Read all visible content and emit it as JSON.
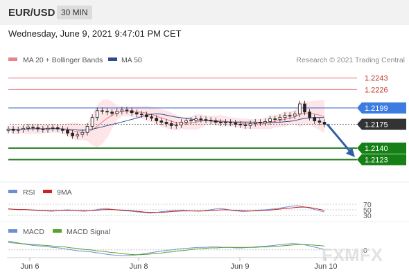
{
  "header": {
    "pair": "EUR/USD",
    "timeframe": "30 MIN"
  },
  "timestamp": "Wednesday, June 9, 2021 9:47:01 PM CET",
  "legend": {
    "ma20": "MA 20 + Bollinger Bands",
    "ma50": "MA 50",
    "copyright": "Research © 2021 Trading Central",
    "rsi": "RSI",
    "rsi_ma": "9MA",
    "macd": "MACD",
    "macd_signal": "MACD Signal"
  },
  "watermark": "FXMFX",
  "colors": {
    "resistance": "#e9838b",
    "pivot": "#5b7fd1",
    "support": "#1e7a1e",
    "current": "#333333",
    "ma20": "#f08080",
    "ma50": "#2e4e8a",
    "band_fill": "#fde0e4",
    "candle": "#222222",
    "arrow": "#2e5ea8",
    "rsi": "#6b8fd4",
    "rsi_ma": "#cc2222",
    "macd": "#6b8fd4",
    "macd_signal": "#5aa02c"
  },
  "chart_data": [
    {
      "type": "candlestick",
      "y_range": [
        1.2095,
        1.226
      ],
      "x_labels": [
        "Jun 6",
        "Jun 8",
        "Jun 9",
        "Jun 10"
      ],
      "levels": [
        {
          "label": "1.2243",
          "value": 1.2243,
          "kind": "resistance"
        },
        {
          "label": "1.2226",
          "value": 1.2226,
          "kind": "resistance"
        },
        {
          "label": "1.2199",
          "value": 1.2199,
          "kind": "pivot"
        },
        {
          "label": "1.2175",
          "value": 1.2175,
          "kind": "current"
        },
        {
          "label": "1.2140",
          "value": 1.214,
          "kind": "support"
        },
        {
          "label": "1.2123",
          "value": 1.2123,
          "kind": "support"
        }
      ],
      "close_series": [
        1.2168,
        1.2166,
        1.2167,
        1.2169,
        1.2171,
        1.217,
        1.2168,
        1.2167,
        1.2169,
        1.217,
        1.2168,
        1.2166,
        1.2162,
        1.2158,
        1.216,
        1.2163,
        1.2172,
        1.2185,
        1.2195,
        1.2194,
        1.2193,
        1.2191,
        1.2194,
        1.2196,
        1.2195,
        1.2192,
        1.219,
        1.2189,
        1.2186,
        1.2184,
        1.218,
        1.2178,
        1.2176,
        1.2173,
        1.2174,
        1.2178,
        1.218,
        1.2181,
        1.2183,
        1.2182,
        1.2181,
        1.218,
        1.2178,
        1.2177,
        1.2178,
        1.2177,
        1.2175,
        1.2174,
        1.2173,
        1.2176,
        1.2178,
        1.2177,
        1.2179,
        1.2183,
        1.2182,
        1.2185,
        1.2188,
        1.2187,
        1.219,
        1.2205,
        1.2193,
        1.2185,
        1.218,
        1.2178,
        1.2175
      ],
      "projection": {
        "from": 1.2175,
        "to": 1.214
      }
    },
    {
      "type": "line",
      "title": "RSI",
      "y_range": [
        25,
        80
      ],
      "ticks": [
        "70",
        "50",
        "30"
      ],
      "series": [
        {
          "name": "RSI",
          "values": [
            54,
            52,
            50,
            51,
            49,
            48,
            47,
            46,
            45,
            47,
            49,
            50,
            48,
            46,
            45,
            47,
            50,
            53,
            55,
            52,
            49,
            47,
            46,
            44,
            42,
            40,
            38,
            40,
            43,
            45,
            47,
            48,
            49,
            47,
            46,
            45,
            47,
            50,
            53,
            55,
            52,
            48,
            46,
            44,
            45,
            47,
            49,
            50,
            52,
            54,
            57,
            60,
            63,
            65,
            62,
            58,
            52,
            47,
            42
          ]
        },
        {
          "name": "9MA",
          "values": [
            53,
            52,
            51,
            51,
            50,
            49,
            48,
            47,
            47,
            47,
            48,
            48,
            48,
            47,
            47,
            47,
            48,
            50,
            51,
            51,
            50,
            49,
            48,
            46,
            44,
            42,
            41,
            41,
            41,
            42,
            44,
            45,
            46,
            46,
            46,
            46,
            46,
            47,
            48,
            50,
            50,
            49,
            48,
            47,
            46,
            46,
            47,
            48,
            49,
            51,
            53,
            55,
            57,
            59,
            60,
            59,
            56,
            52,
            48
          ]
        }
      ]
    },
    {
      "type": "line",
      "title": "MACD",
      "y_range": [
        -0.0016,
        0.0024
      ],
      "ticks": [
        "0"
      ],
      "series": [
        {
          "name": "MACD",
          "values": [
            0.0018,
            0.0016,
            0.0013,
            0.0011,
            0.0009,
            0.0008,
            0.0007,
            0.0005,
            0.0004,
            0.0002,
            0.0,
            -0.0002,
            -0.0003,
            -0.0004,
            -0.0006,
            -0.0008,
            -0.001,
            -0.0011,
            -0.0012,
            -0.0012,
            -0.0011,
            -0.0009,
            -0.0007,
            -0.0005,
            -0.0003,
            -0.0001,
            0.0,
            0.0002,
            0.0003,
            0.0004,
            0.0005,
            0.0005,
            0.0006,
            0.0006,
            0.0005,
            0.0005,
            0.0004,
            0.0004,
            0.0005,
            0.0006,
            0.0007,
            0.0008,
            0.0009,
            0.0011,
            0.0012,
            0.0013,
            0.0012,
            0.001,
            0.0007,
            0.0004,
            0.0001
          ]
        },
        {
          "name": "MACD Signal",
          "values": [
            0.0015,
            0.0014,
            0.0013,
            0.0012,
            0.0011,
            0.001,
            0.0009,
            0.0008,
            0.0007,
            0.0006,
            0.0004,
            0.0003,
            0.0001,
            -0.0,
            -0.0002,
            -0.0003,
            -0.0005,
            -0.0006,
            -0.0008,
            -0.0009,
            -0.001,
            -0.001,
            -0.0009,
            -0.0008,
            -0.0007,
            -0.0005,
            -0.0004,
            -0.0002,
            -0.0001,
            0.0001,
            0.0002,
            0.0003,
            0.0004,
            0.0004,
            0.0005,
            0.0005,
            0.0005,
            0.0005,
            0.0005,
            0.0005,
            0.0006,
            0.0006,
            0.0007,
            0.0008,
            0.0009,
            0.001,
            0.0011,
            0.0011,
            0.001,
            0.0009,
            0.0008
          ]
        }
      ]
    }
  ]
}
